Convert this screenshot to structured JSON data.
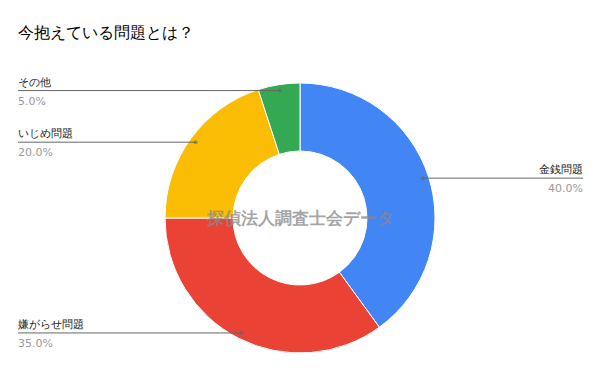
{
  "chart_data": {
    "type": "pie",
    "title": "今抱えている問題とは？",
    "categories": [
      "金銭問題",
      "嫌がらせ問題",
      "いじめ問題",
      "その他"
    ],
    "values": [
      40,
      35,
      20,
      5
    ],
    "value_labels": [
      "40.0%",
      "35.0%",
      "20.0%",
      "5.0%"
    ],
    "colors": [
      "#4285f4",
      "#ea4335",
      "#fbbc04",
      "#34a853"
    ],
    "data_labels": true,
    "annotations": [
      "探偵法人調査士会データ"
    ]
  }
}
